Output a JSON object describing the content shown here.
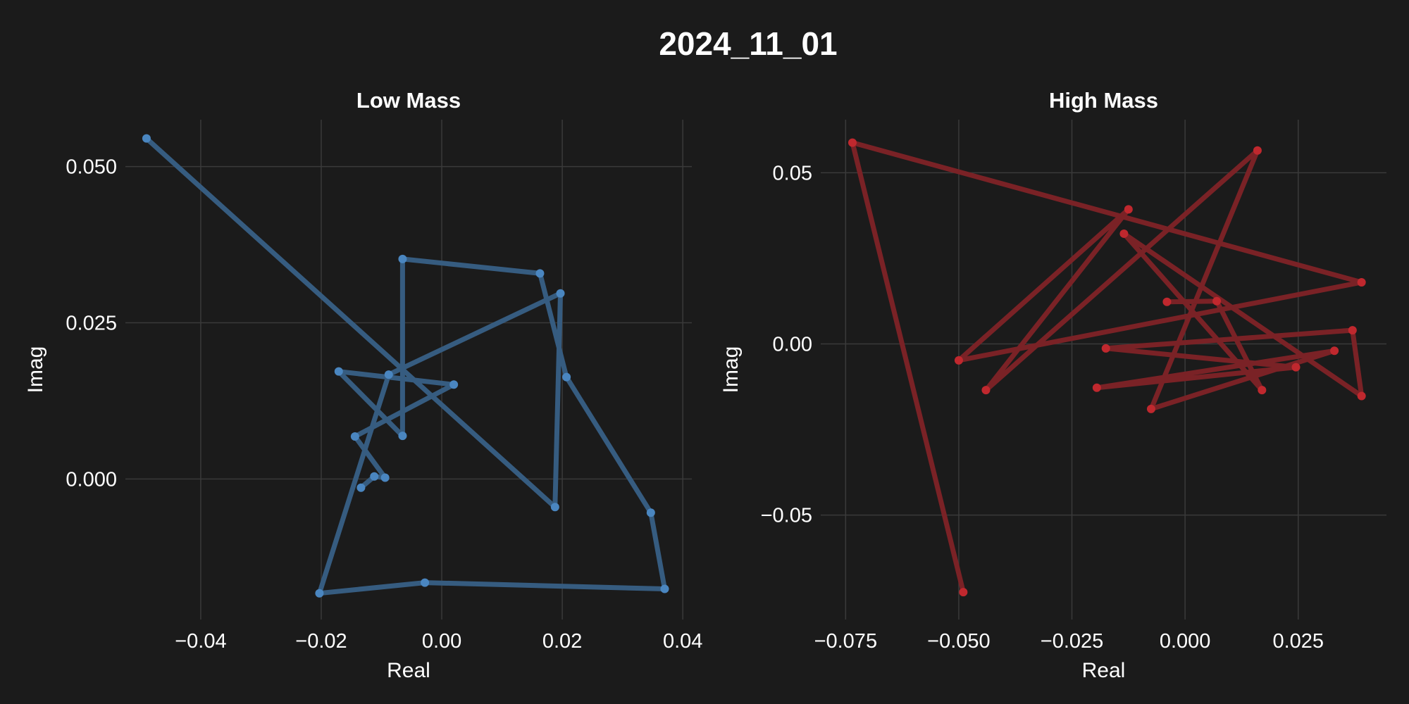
{
  "figure": {
    "title": "2024_11_01"
  },
  "chart_data": [
    {
      "type": "line",
      "title": "Low Mass",
      "xlabel": "Real",
      "ylabel": "Imag",
      "xlim": [
        -0.0525,
        0.0415
      ],
      "ylim": [
        -0.0225,
        0.0575
      ],
      "xticks": [
        -0.04,
        -0.02,
        0.0,
        0.02,
        0.04
      ],
      "xtick_labels": [
        "−0.04",
        "−0.02",
        "0.00",
        "0.02",
        "0.04"
      ],
      "yticks": [
        0.0,
        0.025,
        0.05
      ],
      "ytick_labels": [
        "0.000",
        "0.025",
        "0.050"
      ],
      "grid": true,
      "color": "#4a86c0",
      "line_color": "#365c80",
      "points": [
        {
          "x": -0.049,
          "y": 0.0545
        },
        {
          "x": 0.0188,
          "y": -0.0045
        },
        {
          "x": 0.0197,
          "y": 0.0297
        },
        {
          "x": -0.0088,
          "y": 0.0167
        },
        {
          "x": -0.0203,
          "y": -0.0183
        },
        {
          "x": -0.0028,
          "y": -0.0166
        },
        {
          "x": 0.037,
          "y": -0.0176
        },
        {
          "x": 0.0347,
          "y": -0.0054
        },
        {
          "x": 0.0207,
          "y": 0.0163
        },
        {
          "x": 0.0163,
          "y": 0.0329
        },
        {
          "x": -0.0065,
          "y": 0.0352
        },
        {
          "x": -0.0065,
          "y": 0.0069
        },
        {
          "x": -0.0171,
          "y": 0.0172
        },
        {
          "x": 0.002,
          "y": 0.0151
        },
        {
          "x": -0.0144,
          "y": 0.0068
        },
        {
          "x": -0.0094,
          "y": 0.0002
        },
        {
          "x": -0.0112,
          "y": 0.0004
        },
        {
          "x": -0.0134,
          "y": -0.0014
        }
      ]
    },
    {
      "type": "line",
      "title": "High Mass",
      "xlabel": "Real",
      "ylabel": "Imag",
      "xlim": [
        -0.0805,
        0.0445
      ],
      "ylim": [
        -0.0805,
        0.0655
      ],
      "xticks": [
        -0.075,
        -0.05,
        -0.025,
        0.0,
        0.025
      ],
      "xtick_labels": [
        "−0.075",
        "−0.050",
        "−0.025",
        "0.000",
        "0.025"
      ],
      "yticks": [
        -0.05,
        0.0,
        0.05
      ],
      "ytick_labels": [
        "−0.05",
        "0.00",
        "0.05"
      ],
      "grid": true,
      "color": "#c0282e",
      "line_color": "#7a2226",
      "points": [
        {
          "x": -0.049,
          "y": -0.0725
        },
        {
          "x": -0.0735,
          "y": 0.0588
        },
        {
          "x": 0.039,
          "y": 0.018
        },
        {
          "x": -0.05,
          "y": -0.0048
        },
        {
          "x": -0.0125,
          "y": 0.0393
        },
        {
          "x": -0.044,
          "y": -0.0135
        },
        {
          "x": 0.016,
          "y": 0.0565
        },
        {
          "x": -0.0075,
          "y": -0.019
        },
        {
          "x": 0.033,
          "y": -0.002
        },
        {
          "x": -0.0195,
          "y": -0.0128
        },
        {
          "x": 0.0245,
          "y": -0.0068
        },
        {
          "x": -0.0175,
          "y": -0.0013
        },
        {
          "x": 0.037,
          "y": 0.004
        },
        {
          "x": 0.039,
          "y": -0.0152
        },
        {
          "x": -0.0135,
          "y": 0.0322
        },
        {
          "x": 0.017,
          "y": -0.0135
        },
        {
          "x": 0.007,
          "y": 0.0125
        },
        {
          "x": -0.004,
          "y": 0.0123
        }
      ]
    }
  ]
}
